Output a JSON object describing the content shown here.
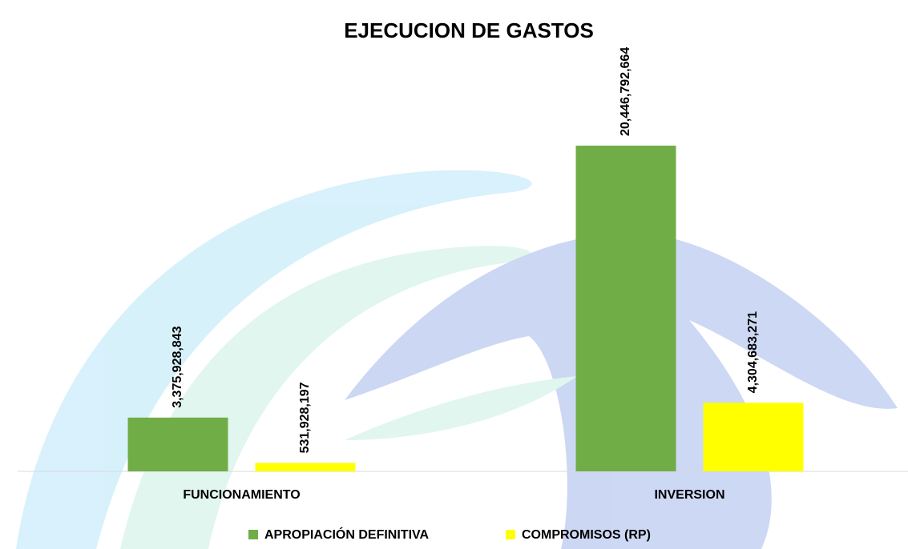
{
  "chart_data": {
    "type": "bar",
    "title": "EJECUCION DE GASTOS",
    "categories": [
      "FUNCIONAMIENTO",
      "INVERSION"
    ],
    "series": [
      {
        "name": "APROPIACIÓN DEFINITIVA",
        "color": "#70ad47",
        "values": [
          3375928843,
          20446792664
        ],
        "value_labels": [
          "3,375,928,843",
          "20,446,792,664"
        ]
      },
      {
        "name": "COMPROMISOS (RP)",
        "color": "#ffff00",
        "values": [
          531928197,
          4304683271
        ],
        "value_labels": [
          "531,928,197",
          "4,304,683,271"
        ]
      }
    ]
  }
}
